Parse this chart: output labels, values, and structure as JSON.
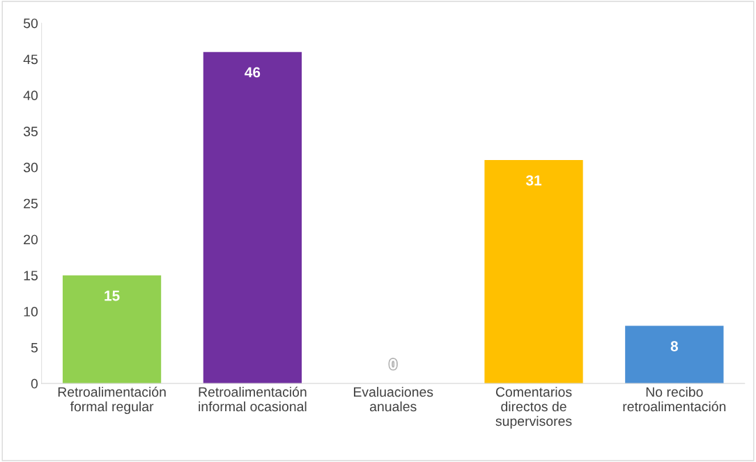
{
  "chart_data": {
    "type": "bar",
    "categories": [
      "Retroalimentación\nformal regular",
      "Retroalimentación\ninformal ocasional",
      "Evaluaciones\nanuales",
      "Comentarios\ndirectos de\nsupervisores",
      "No recibo\nretroalimentación"
    ],
    "values": [
      15,
      46,
      0,
      31,
      8
    ],
    "colors": [
      "#92d050",
      "#7030a0",
      "#a5a5a5",
      "#ffc000",
      "#4a8fd4"
    ],
    "ylim": [
      0,
      50
    ],
    "yticks": [
      0,
      5,
      10,
      15,
      20,
      25,
      30,
      35,
      40,
      45,
      50
    ],
    "grid": false,
    "data_labels": true
  }
}
